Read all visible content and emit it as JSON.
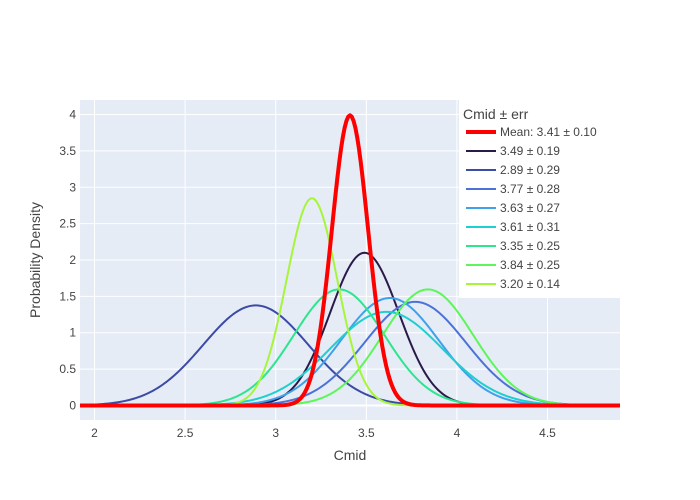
{
  "chart_data": {
    "type": "line",
    "xlabel": "Cmid",
    "ylabel": "Probability Density",
    "xlim": [
      1.92,
      4.9
    ],
    "ylim": [
      -0.2,
      4.2
    ],
    "x_ticks": [
      2,
      2.5,
      3,
      3.5,
      4,
      4.5
    ],
    "x_tick_labels": [
      "2",
      "2.5",
      "3",
      "3.5",
      "4",
      "4.5"
    ],
    "y_ticks": [
      0,
      0.5,
      1,
      1.5,
      2,
      2.5,
      3,
      3.5,
      4
    ],
    "y_tick_labels": [
      "0",
      "0.5",
      "1",
      "1.5",
      "2",
      "2.5",
      "3",
      "3.5",
      "4"
    ],
    "grid": true,
    "plot_background": "#e5ecf6",
    "legend": {
      "title": "Cmid ± err",
      "placement": "right"
    },
    "series": [
      {
        "name": "Mean: 3.41 ± 0.10",
        "mean": 3.41,
        "sd": 0.1,
        "color": "#ff0000",
        "emphasis": true
      },
      {
        "name": "3.49 ± 0.19",
        "mean": 3.49,
        "sd": 0.19,
        "color": "#2a1a4a"
      },
      {
        "name": "2.89 ± 0.29",
        "mean": 2.89,
        "sd": 0.29,
        "color": "#3b4ba6"
      },
      {
        "name": "3.77 ± 0.28",
        "mean": 3.77,
        "sd": 0.28,
        "color": "#4c72d9"
      },
      {
        "name": "3.63 ± 0.27",
        "mean": 3.63,
        "sd": 0.27,
        "color": "#3fa0ec"
      },
      {
        "name": "3.61 ± 0.31",
        "mean": 3.61,
        "sd": 0.31,
        "color": "#1fcfcf"
      },
      {
        "name": "3.35 ± 0.25",
        "mean": 3.35,
        "sd": 0.25,
        "color": "#2de58e"
      },
      {
        "name": "3.84 ± 0.25",
        "mean": 3.84,
        "sd": 0.25,
        "color": "#5ef55a"
      },
      {
        "name": "3.20 ± 0.14",
        "mean": 3.2,
        "sd": 0.14,
        "color": "#a6f53a"
      }
    ]
  }
}
